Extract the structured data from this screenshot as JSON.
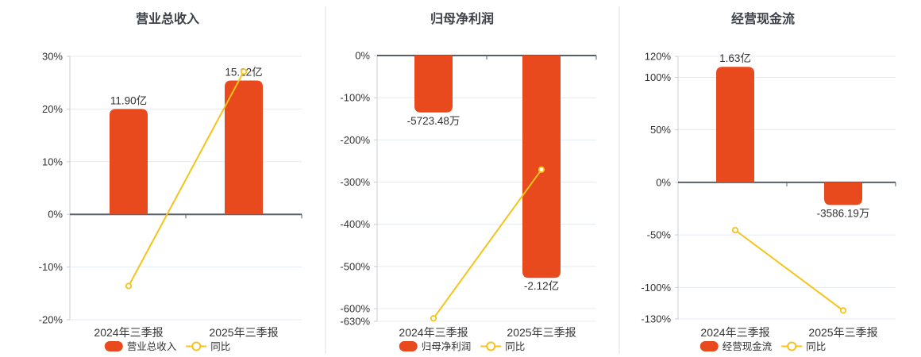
{
  "colors": {
    "bar": "#e8491d",
    "line": "#f5c41a",
    "marker_fill": "#ffffff",
    "grid": "#e4ebf4",
    "axis": "#c9ced6",
    "zero_line": "#595f66",
    "text": "#333333",
    "title": "#3c4147",
    "divider": "#dde1e6",
    "background": "#ffffff"
  },
  "chart_data": [
    {
      "key": "revenue",
      "type": "bar+line",
      "title": "营业总收入",
      "categories": [
        "2024年三季报",
        "2025年三季报"
      ],
      "bar_series": {
        "name": "营业总收入",
        "value_labels": [
          "11.90亿",
          "15.12亿"
        ],
        "values_on_axis_pct": [
          20.0,
          25.4
        ]
      },
      "line_series": {
        "name": "同比",
        "values_pct": [
          -13.6,
          27.1
        ]
      },
      "y_ticks_pct": [
        30,
        20,
        10,
        0,
        -10,
        -20
      ],
      "y_tick_labels": [
        "30%",
        "20%",
        "10%",
        "0%",
        "-10%",
        "-20%"
      ],
      "ylim_pct": [
        -20,
        30
      ],
      "grid": true,
      "legend_position": "bottom"
    },
    {
      "key": "net-profit",
      "type": "bar+line",
      "title": "归母净利润",
      "categories": [
        "2024年三季报",
        "2025年三季报"
      ],
      "bar_series": {
        "name": "归母净利润",
        "value_labels": [
          "-5723.48万",
          "-2.12亿"
        ],
        "values_on_axis_pct": [
          -135,
          -527
        ]
      },
      "line_series": {
        "name": "同比",
        "values_pct": [
          -623,
          -270.4
        ]
      },
      "y_ticks_pct": [
        0,
        -100,
        -200,
        -300,
        -400,
        -500,
        -600,
        -630
      ],
      "y_tick_labels": [
        "0%",
        "-100%",
        "-200%",
        "-300%",
        "-400%",
        "-500%",
        "-600%",
        "-630%"
      ],
      "ylim_pct": [
        -630,
        0
      ],
      "grid": true,
      "legend_position": "bottom"
    },
    {
      "key": "cash-flow",
      "type": "bar+line",
      "title": "经营现金流",
      "categories": [
        "2024年三季报",
        "2025年三季报"
      ],
      "bar_series": {
        "name": "经营现金流",
        "value_labels": [
          "1.63亿",
          "-3586.19万"
        ],
        "values_on_axis_pct": [
          110,
          -21.5
        ]
      },
      "line_series": {
        "name": "同比",
        "values_pct": [
          -45.5,
          -122
        ]
      },
      "y_ticks_pct": [
        120,
        100,
        50,
        0,
        -50,
        -100,
        -130
      ],
      "y_tick_labels": [
        "120%",
        "100%",
        "50%",
        "0%",
        "-50%",
        "-100%",
        "-130%"
      ],
      "ylim_pct": [
        -130,
        120
      ],
      "grid": true,
      "legend_position": "bottom"
    }
  ]
}
